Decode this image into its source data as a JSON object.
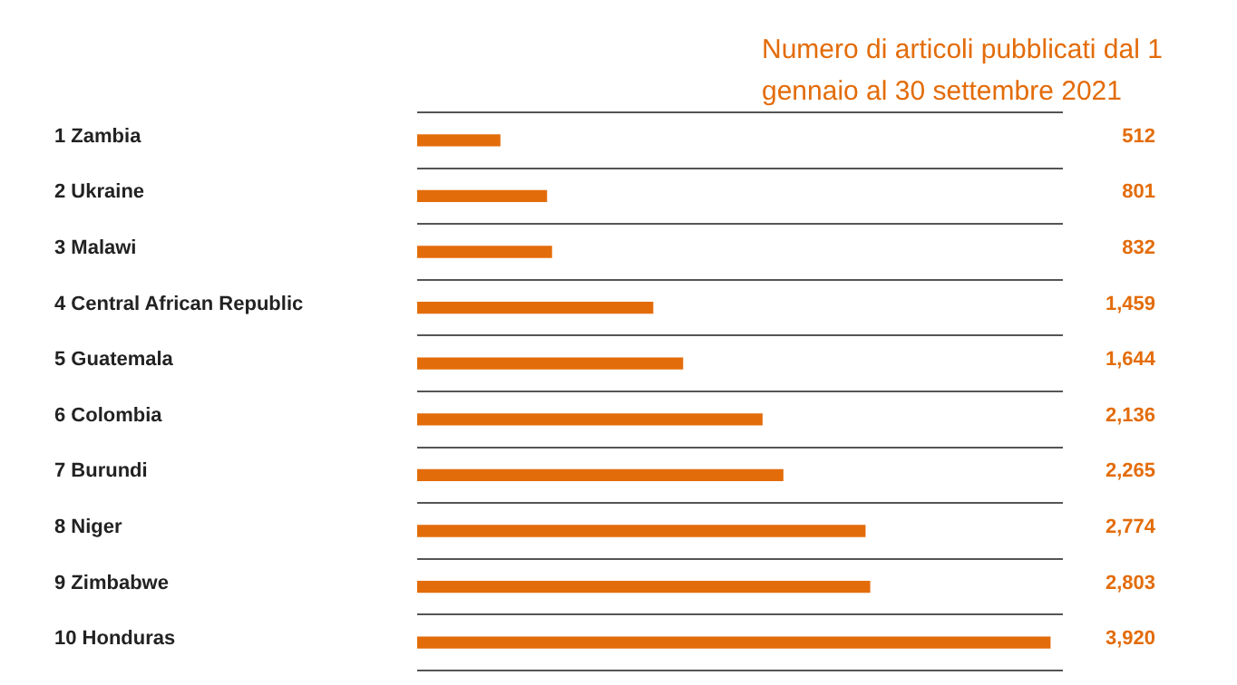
{
  "chart_data": {
    "type": "bar",
    "orientation": "horizontal",
    "title": "Numero di articoli pubblicati dal 1 gennaio al 30 settembre 2021",
    "categories": [
      "1 Zambia",
      "2 Ukraine",
      "3 Malawi",
      "4 Central African Republic",
      "5 Guatemala",
      "6 Colombia",
      "7 Burundi",
      "8 Niger",
      "9 Zimbabwe",
      "10 Honduras"
    ],
    "values": [
      512,
      801,
      832,
      1459,
      1644,
      2136,
      2265,
      2774,
      2803,
      3920
    ],
    "value_labels": [
      "512",
      "801",
      "832",
      "1,459",
      "1,644",
      "2,136",
      "2,265",
      "2,774",
      "2,803",
      "3,920"
    ],
    "color": "#e36c0a",
    "grid": "y",
    "legend": false,
    "tick_labels": "y"
  }
}
